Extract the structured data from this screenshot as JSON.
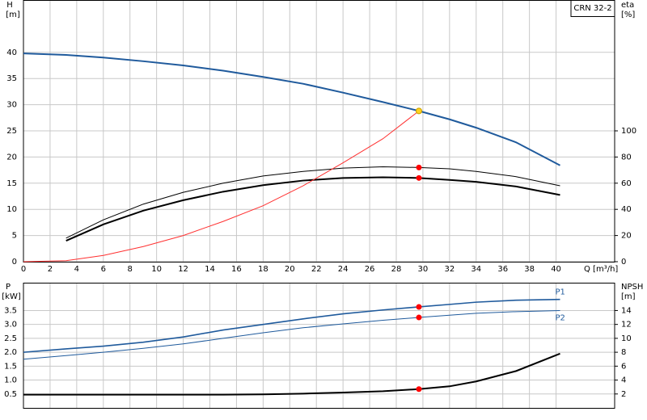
{
  "chart_data": [
    {
      "type": "line",
      "title": "CRN 32-2",
      "y_label": "H",
      "y_unit": "[m]",
      "y2_label": "eta",
      "y2_unit": "[%]",
      "x_label": "Q [m³/h]",
      "x": [
        0,
        3.2,
        6,
        9,
        12,
        15,
        18,
        21,
        24,
        27,
        29.7,
        32,
        34,
        37,
        40.3
      ],
      "xlim": [
        0,
        44.4
      ],
      "xticks": [
        0,
        2,
        4,
        6,
        8,
        10,
        12,
        14,
        16,
        18,
        20,
        22,
        24,
        26,
        28,
        30,
        32,
        34,
        36,
        38,
        40
      ],
      "ylim": [
        0,
        50
      ],
      "yticks": [
        0,
        5,
        10,
        15,
        20,
        25,
        30,
        35,
        40
      ],
      "y2lim": [
        0,
        200
      ],
      "y2ticks": [
        0,
        20,
        40,
        60,
        80,
        100
      ],
      "grid": true,
      "series": [
        {
          "color": "#1f5a9c",
          "width": 2,
          "values": [
            39.8,
            39.5,
            39,
            38.3,
            37.5,
            36.5,
            35.3,
            34,
            32.3,
            30.5,
            28.8,
            27.2,
            25.6,
            22.8,
            18.4
          ]
        },
        {
          "color": "#000000",
          "width": 1,
          "axis": "y2",
          "values": [
            null,
            18,
            32,
            44,
            53,
            60,
            65.5,
            69,
            71.5,
            72.5,
            72,
            71,
            69,
            65,
            58
          ]
        },
        {
          "color": "#000000",
          "width": 2,
          "axis": "y2",
          "values": [
            null,
            16,
            28.5,
            39,
            47,
            53.5,
            58.5,
            62,
            64,
            64.5,
            64,
            62.5,
            61,
            57.5,
            51
          ]
        },
        {
          "color": "#ff3030",
          "width": 1,
          "values": [
            0,
            0.2,
            1.2,
            2.9,
            5,
            7.7,
            10.7,
            14.5,
            18.9,
            23.5,
            28.8,
            null,
            null,
            null,
            null
          ]
        }
      ],
      "markers": [
        {
          "x": 29.7,
          "y": 28.8,
          "color": "#ffd21f"
        },
        {
          "x": 29.7,
          "y": 72,
          "axis": "y2",
          "color": "#ff0000"
        },
        {
          "x": 29.7,
          "y": 64,
          "axis": "y2",
          "color": "#ff0000"
        }
      ]
    },
    {
      "type": "line",
      "y_label": "P",
      "y_unit": "[kW]",
      "y2_label": "NPSH",
      "y2_unit": "[m]",
      "x": [
        0,
        3.2,
        6,
        9,
        12,
        15,
        18,
        21,
        24,
        27,
        29.7,
        32,
        34,
        37,
        40.3
      ],
      "xlim": [
        0,
        44.4
      ],
      "xticks": [
        0,
        2,
        4,
        6,
        8,
        10,
        12,
        14,
        16,
        18,
        20,
        22,
        24,
        26,
        28,
        30,
        32,
        34,
        36,
        38,
        40
      ],
      "ylim": [
        0,
        4.5
      ],
      "yticks": [
        0.5,
        {
          "value": 1,
          "label": "1.0"
        },
        1.5,
        {
          "value": 2,
          "label": "2.0"
        },
        2.5,
        {
          "value": 3,
          "label": "3.0"
        },
        3.5
      ],
      "y2lim": [
        0,
        18
      ],
      "y2ticks": [
        2,
        4,
        6,
        8,
        10,
        12,
        14
      ],
      "grid": true,
      "series": [
        {
          "name": "P1",
          "color": "#1f5a9c",
          "width": 1.6,
          "values": [
            2.0,
            2.12,
            2.22,
            2.36,
            2.55,
            2.8,
            3.0,
            3.2,
            3.38,
            3.52,
            3.63,
            3.72,
            3.8,
            3.87,
            3.9
          ]
        },
        {
          "name": "P2",
          "color": "#1f5a9c",
          "width": 1,
          "values": [
            1.75,
            1.88,
            2.0,
            2.14,
            2.3,
            2.5,
            2.7,
            2.88,
            3.02,
            3.15,
            3.25,
            3.33,
            3.4,
            3.46,
            3.5
          ]
        },
        {
          "color": "#000000",
          "width": 2,
          "axis": "y2",
          "values": [
            1.9,
            1.9,
            1.9,
            1.9,
            1.9,
            1.9,
            1.95,
            2.05,
            2.2,
            2.4,
            2.7,
            3.1,
            3.8,
            5.3,
            7.8
          ]
        }
      ],
      "markers": [
        {
          "x": 29.7,
          "y": 3.63,
          "color": "#ff0000"
        },
        {
          "x": 29.7,
          "y": 3.25,
          "color": "#ff0000"
        },
        {
          "x": 29.7,
          "y": 2.7,
          "axis": "y2",
          "color": "#ff0000"
        }
      ]
    }
  ]
}
